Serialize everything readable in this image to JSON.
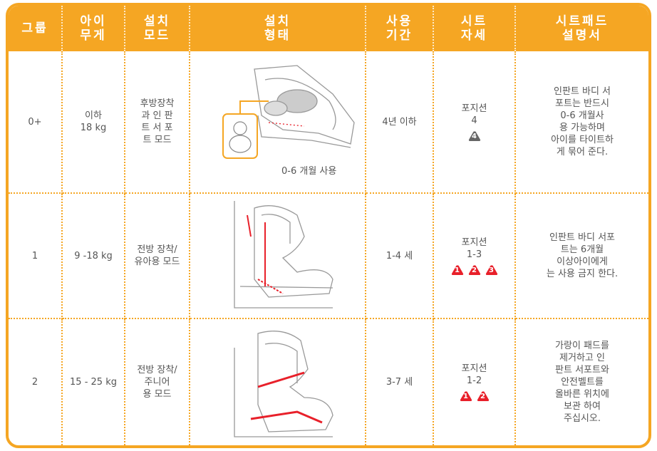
{
  "header": [
    "그룹",
    [
      "아이",
      "무게"
    ],
    [
      "설치",
      "모드"
    ],
    [
      "설치",
      "형태"
    ],
    [
      "사용",
      "기간"
    ],
    [
      "시트",
      "자세"
    ],
    [
      "시트패드",
      "설명서"
    ]
  ],
  "rows": [
    {
      "group": "0+",
      "weight": [
        "이하",
        "18 kg"
      ],
      "mode": [
        "후방장착",
        "과 인 판",
        "트 서 포",
        "트 모드"
      ],
      "image_caption": "0-6 개월 사용",
      "period": "4년 이하",
      "position": [
        "포지션",
        "4"
      ],
      "badges": [
        "4"
      ],
      "badge_color": "#666666",
      "description": [
        "인판트 바디 서",
        "포트는 반드시",
        "0-6 개월사",
        "용 가능하며",
        "아이를 타이트하",
        "게 묶어 준다."
      ]
    },
    {
      "group": "1",
      "weight": [
        "9 -18 kg"
      ],
      "mode": [
        "전방 장착/",
        "유아용 모드"
      ],
      "period": "1-4 세",
      "position": [
        "포지션",
        "1-3"
      ],
      "badges": [
        "1",
        "2",
        "3"
      ],
      "badge_color": "#e8202a",
      "description": [
        "인판트 바디 서포",
        "트는 6개월",
        "이상아이에게",
        "는 사용 금지 한다."
      ]
    },
    {
      "group": "2",
      "weight": [
        "15 - 25 kg"
      ],
      "mode": [
        "전방 장착/",
        "주니어",
        "용 모드"
      ],
      "period": "3-7 세",
      "position": [
        "포지션",
        "1-2"
      ],
      "badges": [
        "1",
        "2"
      ],
      "badge_color": "#e8202a",
      "description": [
        "가랑이 패드를",
        "제거하고 인",
        "판트 서포트와",
        "안전벨트를",
        "올바른 위치에",
        "보관 하여",
        "주십시오."
      ]
    }
  ]
}
